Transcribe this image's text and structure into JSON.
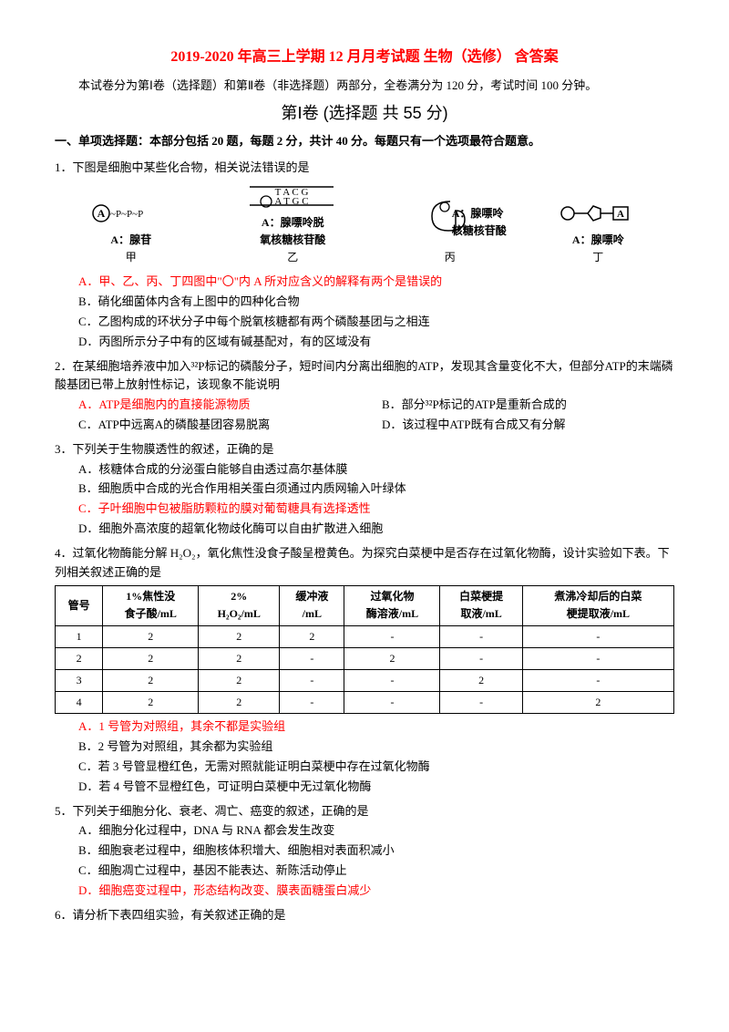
{
  "title": "2019-2020 年高三上学期 12 月月考试题  生物（选修） 含答案",
  "intro": "本试卷分为第Ⅰ卷（选择题）和第Ⅱ卷（非选择题）两部分，全卷满分为 120 分，考试时间 100 分钟。",
  "section1_title": "第Ⅰ卷 (选择题  共 55 分)",
  "section1_sub": "一、单项选择题：本部分包括 20 题，每题 2 分，共计 40 分。每题只有一个选项最符合题意。",
  "q1": {
    "stem": "1．下图是细胞中某些化合物，相关说法错误的是",
    "diagrams": {
      "jia_label": "A：腺苷",
      "jia_name": "甲",
      "yi_label": "A：腺嘌呤脱\n氧核糖核苷酸",
      "yi_name": "乙",
      "bing_label": "A：腺嘌呤\n核糖核苷酸",
      "bing_name": "丙",
      "ding_label": "A：腺嘌呤",
      "ding_name": "丁",
      "seq_top": "T  A  C  G",
      "seq_bot": "A  T  G  C"
    },
    "A": "A．甲、乙、丙、丁四图中\"〇\"内 A 所对应含义的解释有两个是错误的",
    "B": "B．硝化细菌体内含有上图中的四种化合物",
    "C": "C．乙图构成的环状分子中每个脱氧核糖都有两个磷酸基团与之相连",
    "D": "D．丙图所示分子中有的区域有碱基配对，有的区域没有"
  },
  "q2": {
    "stem": "2．在某细胞培养液中加入³²P标记的磷酸分子，短时间内分离出细胞的ATP，发现其含量变化不大，但部分ATP的末端磷酸基团已带上放射性标记，该现象不能说明",
    "A": "A．ATP是细胞内的直接能源物质",
    "B": "B．部分³²P标记的ATP是重新合成的",
    "C": "C．ATP中远离A的磷酸基团容易脱离",
    "D": "D．该过程中ATP既有合成又有分解"
  },
  "q3": {
    "stem": "3．下列关于生物膜透性的叙述，正确的是",
    "A": "A．核糖体合成的分泌蛋白能够自由透过高尔基体膜",
    "B": "B．细胞质中合成的光合作用相关蛋白须通过内质网输入叶绿体",
    "C": "C．子叶细胞中包被脂肪颗粒的膜对葡萄糖具有选择透性",
    "D": "D．细胞外高浓度的超氧化物歧化酶可以自由扩散进入细胞"
  },
  "q4": {
    "stem": "4．过氧化物酶能分解 H₂O₂，氧化焦性没食子酸呈橙黄色。为探究白菜梗中是否存在过氧化物酶，设计实验如下表。下列相关叙述正确的是",
    "table": {
      "headers": [
        "管号",
        "1%焦性没\n食子酸/mL",
        "2%\nH₂O₂/mL",
        "缓冲液\n/mL",
        "过氧化物\n酶溶液/mL",
        "白菜梗提\n取液/mL",
        "煮沸冷却后的白菜\n梗提取液/mL"
      ],
      "rows": [
        [
          "1",
          "2",
          "2",
          "2",
          "-",
          "-",
          "-"
        ],
        [
          "2",
          "2",
          "2",
          "-",
          "2",
          "-",
          "-"
        ],
        [
          "3",
          "2",
          "2",
          "-",
          "-",
          "2",
          "-"
        ],
        [
          "4",
          "2",
          "2",
          "-",
          "-",
          "-",
          "2"
        ]
      ]
    },
    "A": "A．1 号管为对照组，其余不都是实验组",
    "B": "B．2 号管为对照组，其余都为实验组",
    "C": "C．若 3 号管显橙红色，无需对照就能证明白菜梗中存在过氧化物酶",
    "D": "D．若 4 号管不显橙红色，可证明白菜梗中无过氧化物酶"
  },
  "q5": {
    "stem": "5．下列关于细胞分化、衰老、凋亡、癌变的叙述，正确的是",
    "A": "A．细胞分化过程中，DNA 与 RNA 都会发生改变",
    "B": "B．细胞衰老过程中，细胞核体积增大、细胞相对表面积减小",
    "C": "C．细胞凋亡过程中，基因不能表达、新陈活动停止",
    "D": "D．细胞癌变过程中，形态结构改变、膜表面糖蛋白减少"
  },
  "q6": {
    "stem": "6．请分析下表四组实验，有关叙述正确的是"
  },
  "colors": {
    "answer": "#ff0000",
    "text": "#000000",
    "border": "#000000",
    "bg": "#ffffff"
  },
  "fonts": {
    "body_size": 13,
    "title_size": 16,
    "section_size": 18
  }
}
